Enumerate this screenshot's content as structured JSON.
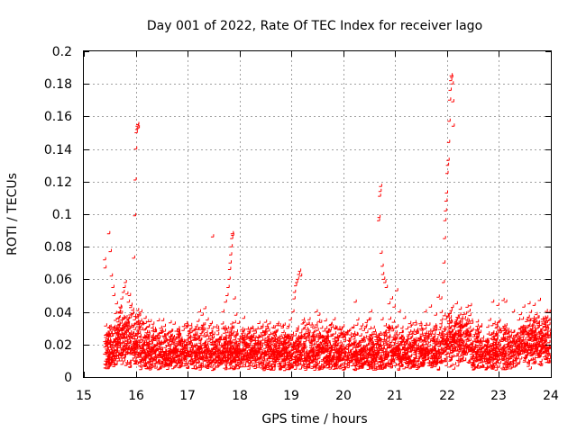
{
  "chart_data": {
    "type": "scatter",
    "title": "Day 001 of 2022, Rate Of TEC Index for receiver lago",
    "xlabel": "GPS time / hours",
    "ylabel": "ROTI / TECUs",
    "xlim": [
      15,
      24
    ],
    "ylim": [
      0,
      0.2
    ],
    "xticks": [
      15,
      16,
      17,
      18,
      19,
      20,
      21,
      22,
      23,
      24
    ],
    "yticks": [
      0,
      0.02,
      0.04,
      0.06,
      0.08,
      0.1,
      0.12,
      0.14,
      0.16,
      0.18,
      0.2
    ],
    "xtick_labels": [
      "15",
      "16",
      "17",
      "18",
      "19",
      "20",
      "21",
      "22",
      "23",
      "24"
    ],
    "ytick_labels": [
      "0",
      "0.02",
      "0.04",
      "0.06",
      "0.08",
      "0.1",
      "0.12",
      "0.14",
      "0.16",
      "0.18",
      "0.2"
    ],
    "grid": true,
    "marker": "+",
    "color": "#ff0000",
    "series": [
      {
        "name": "ROTI",
        "points": [
          [
            15.42,
            0.072
          ],
          [
            15.43,
            0.067
          ],
          [
            15.5,
            0.088
          ],
          [
            15.53,
            0.077
          ],
          [
            15.55,
            0.062
          ],
          [
            15.58,
            0.055
          ],
          [
            15.6,
            0.05
          ],
          [
            15.65,
            0.045
          ],
          [
            15.7,
            0.04
          ],
          [
            15.72,
            0.043
          ],
          [
            15.75,
            0.048
          ],
          [
            15.78,
            0.052
          ],
          [
            15.8,
            0.055
          ],
          [
            15.82,
            0.058
          ],
          [
            15.85,
            0.051
          ],
          [
            15.88,
            0.046
          ],
          [
            15.9,
            0.05
          ],
          [
            15.93,
            0.044
          ],
          [
            15.96,
            0.041
          ],
          [
            15.98,
            0.073
          ],
          [
            16.0,
            0.099
          ],
          [
            16.01,
            0.121
          ],
          [
            16.02,
            0.14
          ],
          [
            16.03,
            0.15
          ],
          [
            16.04,
            0.152
          ],
          [
            16.05,
            0.154
          ],
          [
            16.06,
            0.155
          ],
          [
            16.07,
            0.153
          ],
          [
            16.12,
            0.04
          ],
          [
            16.2,
            0.036
          ],
          [
            16.3,
            0.034
          ],
          [
            16.5,
            0.03
          ],
          [
            16.7,
            0.028
          ],
          [
            17.25,
            0.04
          ],
          [
            17.3,
            0.038
          ],
          [
            17.35,
            0.042
          ],
          [
            17.4,
            0.035
          ],
          [
            17.5,
            0.086
          ],
          [
            17.6,
            0.03
          ],
          [
            17.7,
            0.04
          ],
          [
            17.75,
            0.046
          ],
          [
            17.78,
            0.05
          ],
          [
            17.8,
            0.055
          ],
          [
            17.82,
            0.06
          ],
          [
            17.83,
            0.066
          ],
          [
            17.84,
            0.07
          ],
          [
            17.85,
            0.075
          ],
          [
            17.86,
            0.08
          ],
          [
            17.87,
            0.085
          ],
          [
            17.88,
            0.088
          ],
          [
            17.89,
            0.087
          ],
          [
            17.92,
            0.048
          ],
          [
            17.95,
            0.038
          ],
          [
            18.0,
            0.033
          ],
          [
            18.1,
            0.036
          ],
          [
            18.2,
            0.028
          ],
          [
            18.95,
            0.03
          ],
          [
            19.0,
            0.035
          ],
          [
            19.05,
            0.04
          ],
          [
            19.07,
            0.048
          ],
          [
            19.08,
            0.052
          ],
          [
            19.1,
            0.056
          ],
          [
            19.12,
            0.058
          ],
          [
            19.14,
            0.06
          ],
          [
            19.16,
            0.063
          ],
          [
            19.18,
            0.065
          ],
          [
            19.2,
            0.062
          ],
          [
            19.25,
            0.035
          ],
          [
            19.4,
            0.032
          ],
          [
            19.5,
            0.04
          ],
          [
            19.55,
            0.038
          ],
          [
            19.6,
            0.03
          ],
          [
            20.25,
            0.046
          ],
          [
            20.3,
            0.035
          ],
          [
            20.5,
            0.035
          ],
          [
            20.55,
            0.04
          ],
          [
            20.6,
            0.03
          ],
          [
            20.7,
            0.096
          ],
          [
            20.71,
            0.098
          ],
          [
            20.72,
            0.111
          ],
          [
            20.73,
            0.114
          ],
          [
            20.74,
            0.117
          ],
          [
            20.75,
            0.076
          ],
          [
            20.77,
            0.068
          ],
          [
            20.78,
            0.063
          ],
          [
            20.8,
            0.06
          ],
          [
            20.82,
            0.058
          ],
          [
            20.85,
            0.055
          ],
          [
            20.9,
            0.045
          ],
          [
            20.95,
            0.048
          ],
          [
            21.0,
            0.043
          ],
          [
            21.05,
            0.053
          ],
          [
            21.1,
            0.04
          ],
          [
            21.2,
            0.036
          ],
          [
            21.6,
            0.04
          ],
          [
            21.7,
            0.043
          ],
          [
            21.8,
            0.038
          ],
          [
            21.85,
            0.049
          ],
          [
            21.9,
            0.048
          ],
          [
            21.95,
            0.058
          ],
          [
            21.96,
            0.07
          ],
          [
            21.97,
            0.085
          ],
          [
            21.98,
            0.096
          ],
          [
            21.99,
            0.102
          ],
          [
            22.0,
            0.108
          ],
          [
            22.01,
            0.113
          ],
          [
            22.02,
            0.125
          ],
          [
            22.03,
            0.13
          ],
          [
            22.04,
            0.133
          ],
          [
            22.05,
            0.144
          ],
          [
            22.06,
            0.157
          ],
          [
            22.07,
            0.17
          ],
          [
            22.08,
            0.176
          ],
          [
            22.09,
            0.182
          ],
          [
            22.1,
            0.185
          ],
          [
            22.11,
            0.184
          ],
          [
            22.12,
            0.18
          ],
          [
            22.13,
            0.169
          ],
          [
            22.14,
            0.154
          ],
          [
            22.2,
            0.045
          ],
          [
            22.3,
            0.036
          ],
          [
            22.4,
            0.035
          ],
          [
            22.5,
            0.033
          ],
          [
            22.9,
            0.046
          ],
          [
            23.0,
            0.044
          ],
          [
            23.1,
            0.047
          ],
          [
            23.15,
            0.046
          ],
          [
            23.3,
            0.04
          ],
          [
            23.4,
            0.035
          ],
          [
            23.5,
            0.043
          ],
          [
            23.6,
            0.045
          ],
          [
            23.7,
            0.044
          ],
          [
            23.8,
            0.047
          ],
          [
            23.9,
            0.036
          ],
          [
            23.95,
            0.03
          ],
          [
            24.0,
            0.035
          ],
          [
            15.45,
            0.02
          ],
          [
            15.55,
            0.025
          ],
          [
            15.7,
            0.018
          ],
          [
            15.85,
            0.022
          ],
          [
            16.1,
            0.025
          ],
          [
            16.25,
            0.02
          ],
          [
            16.4,
            0.016
          ],
          [
            16.6,
            0.022
          ],
          [
            16.8,
            0.015
          ],
          [
            16.95,
            0.012
          ],
          [
            17.1,
            0.018
          ],
          [
            17.35,
            0.02
          ],
          [
            17.55,
            0.015
          ],
          [
            17.75,
            0.022
          ],
          [
            18.05,
            0.025
          ],
          [
            18.3,
            0.018
          ],
          [
            18.5,
            0.015
          ],
          [
            18.7,
            0.012
          ],
          [
            18.9,
            0.02
          ],
          [
            19.2,
            0.025
          ],
          [
            19.45,
            0.022
          ],
          [
            19.7,
            0.018
          ],
          [
            19.9,
            0.012
          ],
          [
            20.1,
            0.015
          ],
          [
            20.4,
            0.018
          ],
          [
            20.65,
            0.02
          ],
          [
            20.9,
            0.025
          ],
          [
            21.15,
            0.03
          ],
          [
            21.4,
            0.022
          ],
          [
            21.7,
            0.025
          ],
          [
            22.25,
            0.028
          ],
          [
            22.45,
            0.03
          ],
          [
            22.7,
            0.022
          ],
          [
            22.95,
            0.02
          ],
          [
            23.2,
            0.025
          ],
          [
            23.45,
            0.03
          ],
          [
            23.7,
            0.028
          ],
          [
            23.9,
            0.025
          ]
        ]
      }
    ]
  }
}
